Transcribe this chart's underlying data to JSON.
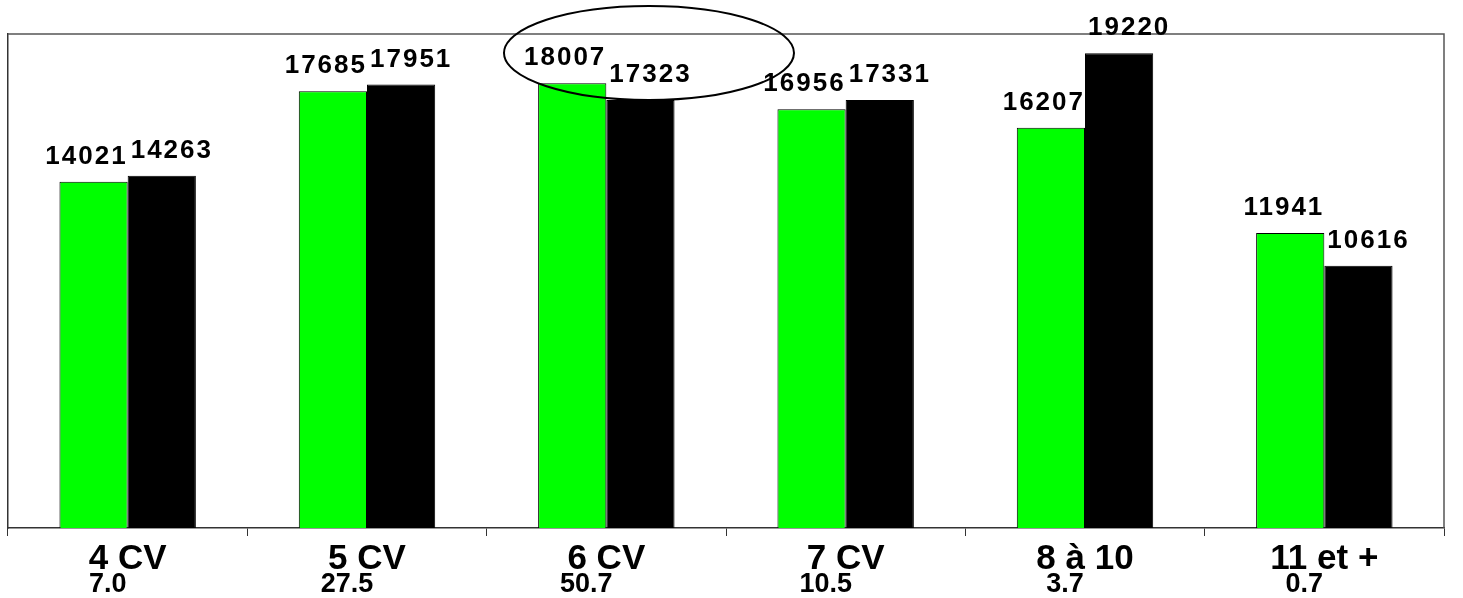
{
  "chart_data": {
    "type": "bar",
    "categories": [
      "4 CV",
      "5 CV",
      "6 CV",
      "7 CV",
      "8 à 10",
      "11 et +"
    ],
    "series": [
      {
        "color": "#00ff00",
        "values": [
          14021,
          17685,
          18007,
          16956,
          16207,
          11941
        ]
      },
      {
        "color": "#000000",
        "values": [
          14263,
          17951,
          17323,
          17331,
          19220,
          10616
        ]
      }
    ],
    "ylim": [
      0,
      20000
    ],
    "data_labels": true,
    "tick_labels": "x",
    "annotations": [
      "7.0",
      "27.5",
      "50.7",
      "10.5",
      "3.7",
      "0.7"
    ]
  }
}
